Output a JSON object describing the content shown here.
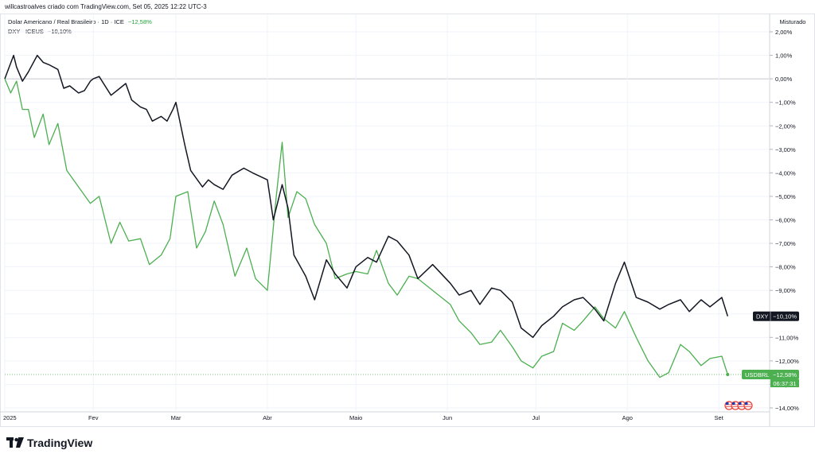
{
  "header": {
    "author_line": "willcastroalves criado com TradingView.com, Set 05, 2025 12:22 UTC-3"
  },
  "legend": {
    "main_symbol": "Dolar Americano / Real Brasileiro · 1D · ICE",
    "main_change": "−12,58%",
    "compare_symbol": "DXY · ICEUS",
    "compare_change": "−10,10%"
  },
  "price_scale": {
    "mode_label": "Misturado"
  },
  "badges": {
    "dxy": {
      "name": "DXY",
      "value": "−10,10%"
    },
    "usdbrl": {
      "name": "USDBRL",
      "value": "−12,58%",
      "countdown": "06:37:31"
    }
  },
  "brand": {
    "name": "TradingView"
  },
  "colors": {
    "dxy": "#131722",
    "usdbrl": "#4caf50",
    "usdbrl_badge": "#4caf50",
    "grid": "#f0f3fa",
    "zero_line": "#b2b5be"
  },
  "chart_data": {
    "type": "line",
    "title": "",
    "xlabel": "",
    "ylabel": "",
    "y_unit": "%",
    "ylim": [
      -14.0,
      2.0
    ],
    "y_ticks": [
      {
        "value": 2,
        "label": "2,00%"
      },
      {
        "value": 1,
        "label": "1,00%"
      },
      {
        "value": 0,
        "label": "0,00%"
      },
      {
        "value": -1,
        "label": "−1,00%"
      },
      {
        "value": -2,
        "label": "−2,00%"
      },
      {
        "value": -3,
        "label": "−3,00%"
      },
      {
        "value": -4,
        "label": "−4,00%"
      },
      {
        "value": -5,
        "label": "−5,00%"
      },
      {
        "value": -6,
        "label": "−6,00%"
      },
      {
        "value": -7,
        "label": "−7,00%"
      },
      {
        "value": -8,
        "label": "−8,00%"
      },
      {
        "value": -9,
        "label": "−9,00%"
      },
      {
        "value": -10,
        "label": "−10,00%"
      },
      {
        "value": -11,
        "label": "−11,00%"
      },
      {
        "value": -12,
        "label": "−12,00%"
      },
      {
        "value": -13,
        "label": "−13,00%"
      },
      {
        "value": -14,
        "label": "−14,00%"
      }
    ],
    "x_ticks": [
      {
        "date": "2025-01-02",
        "label": "2025"
      },
      {
        "date": "2025-02-01",
        "label": "Fev"
      },
      {
        "date": "2025-03-01",
        "label": "Mar"
      },
      {
        "date": "2025-04-01",
        "label": "Abr"
      },
      {
        "date": "2025-05-01",
        "label": "Maio"
      },
      {
        "date": "2025-06-01",
        "label": "Jun"
      },
      {
        "date": "2025-07-01",
        "label": "Jul"
      },
      {
        "date": "2025-08-01",
        "label": "Ago"
      },
      {
        "date": "2025-09-01",
        "label": "Set"
      }
    ],
    "grid": true,
    "series": [
      {
        "name": "DXY",
        "color": "#131722",
        "points": [
          [
            "2025-01-02",
            0
          ],
          [
            "2025-01-05",
            1.0
          ],
          [
            "2025-01-06",
            0.5
          ],
          [
            "2025-01-08",
            -0.1
          ],
          [
            "2025-01-10",
            0.3
          ],
          [
            "2025-01-13",
            1.0
          ],
          [
            "2025-01-15",
            0.7
          ],
          [
            "2025-01-17",
            0.6
          ],
          [
            "2025-01-20",
            0.4
          ],
          [
            "2025-01-22",
            -0.4
          ],
          [
            "2025-01-24",
            -0.3
          ],
          [
            "2025-01-27",
            -0.6
          ],
          [
            "2025-01-29",
            -0.5
          ],
          [
            "2025-01-31",
            -0.1
          ],
          [
            "2025-02-01",
            0
          ],
          [
            "2025-02-03",
            0.1
          ],
          [
            "2025-02-05",
            -0.3
          ],
          [
            "2025-02-07",
            -0.7
          ],
          [
            "2025-02-10",
            -0.4
          ],
          [
            "2025-02-12",
            -0.2
          ],
          [
            "2025-02-14",
            -0.9
          ],
          [
            "2025-02-17",
            -1.2
          ],
          [
            "2025-02-19",
            -1.3
          ],
          [
            "2025-02-21",
            -1.8
          ],
          [
            "2025-02-24",
            -1.6
          ],
          [
            "2025-02-26",
            -1.8
          ],
          [
            "2025-02-28",
            -1.3
          ],
          [
            "2025-03-01",
            -1.0
          ],
          [
            "2025-03-04",
            -2.8
          ],
          [
            "2025-03-06",
            -3.9
          ],
          [
            "2025-03-10",
            -4.6
          ],
          [
            "2025-03-12",
            -4.3
          ],
          [
            "2025-03-14",
            -4.5
          ],
          [
            "2025-03-17",
            -4.7
          ],
          [
            "2025-03-20",
            -4.1
          ],
          [
            "2025-03-24",
            -3.8
          ],
          [
            "2025-03-27",
            -4.0
          ],
          [
            "2025-04-01",
            -4.3
          ],
          [
            "2025-04-03",
            -6.0
          ],
          [
            "2025-04-06",
            -4.5
          ],
          [
            "2025-04-08",
            -5.5
          ],
          [
            "2025-04-10",
            -7.5
          ],
          [
            "2025-04-14",
            -8.4
          ],
          [
            "2025-04-17",
            -9.4
          ],
          [
            "2025-04-21",
            -7.7
          ],
          [
            "2025-04-24",
            -8.3
          ],
          [
            "2025-04-28",
            -8.9
          ],
          [
            "2025-05-01",
            -8.0
          ],
          [
            "2025-05-05",
            -7.6
          ],
          [
            "2025-05-08",
            -7.8
          ],
          [
            "2025-05-12",
            -6.7
          ],
          [
            "2025-05-15",
            -6.9
          ],
          [
            "2025-05-19",
            -7.5
          ],
          [
            "2025-05-22",
            -8.5
          ],
          [
            "2025-05-27",
            -7.9
          ],
          [
            "2025-06-02",
            -8.7
          ],
          [
            "2025-06-05",
            -9.2
          ],
          [
            "2025-06-09",
            -9.0
          ],
          [
            "2025-06-12",
            -9.6
          ],
          [
            "2025-06-16",
            -8.9
          ],
          [
            "2025-06-19",
            -9.0
          ],
          [
            "2025-06-23",
            -9.5
          ],
          [
            "2025-06-26",
            -10.6
          ],
          [
            "2025-06-30",
            -11.0
          ],
          [
            "2025-07-03",
            -10.5
          ],
          [
            "2025-07-07",
            -10.1
          ],
          [
            "2025-07-10",
            -9.7
          ],
          [
            "2025-07-14",
            -9.4
          ],
          [
            "2025-07-17",
            -9.3
          ],
          [
            "2025-07-21",
            -9.8
          ],
          [
            "2025-07-24",
            -10.3
          ],
          [
            "2025-07-28",
            -8.7
          ],
          [
            "2025-07-31",
            -7.8
          ],
          [
            "2025-08-04",
            -9.3
          ],
          [
            "2025-08-08",
            -9.5
          ],
          [
            "2025-08-12",
            -9.8
          ],
          [
            "2025-08-15",
            -9.6
          ],
          [
            "2025-08-19",
            -9.4
          ],
          [
            "2025-08-22",
            -9.9
          ],
          [
            "2025-08-26",
            -9.4
          ],
          [
            "2025-08-29",
            -9.7
          ],
          [
            "2025-09-02",
            -9.3
          ],
          [
            "2025-09-04",
            -10.1
          ]
        ]
      },
      {
        "name": "USDBRL",
        "color": "#4caf50",
        "points": [
          [
            "2025-01-02",
            0
          ],
          [
            "2025-01-04",
            -0.6
          ],
          [
            "2025-01-06",
            -0.1
          ],
          [
            "2025-01-08",
            -1.3
          ],
          [
            "2025-01-10",
            -1.3
          ],
          [
            "2025-01-12",
            -2.5
          ],
          [
            "2025-01-15",
            -1.5
          ],
          [
            "2025-01-17",
            -2.8
          ],
          [
            "2025-01-20",
            -1.9
          ],
          [
            "2025-01-23",
            -3.9
          ],
          [
            "2025-01-27",
            -4.6
          ],
          [
            "2025-01-31",
            -5.3
          ],
          [
            "2025-02-03",
            -5.0
          ],
          [
            "2025-02-07",
            -7.0
          ],
          [
            "2025-02-10",
            -6.1
          ],
          [
            "2025-02-13",
            -6.9
          ],
          [
            "2025-02-17",
            -6.8
          ],
          [
            "2025-02-20",
            -7.9
          ],
          [
            "2025-02-24",
            -7.5
          ],
          [
            "2025-02-27",
            -6.8
          ],
          [
            "2025-03-01",
            -5.0
          ],
          [
            "2025-03-05",
            -4.8
          ],
          [
            "2025-03-08",
            -7.2
          ],
          [
            "2025-03-11",
            -6.5
          ],
          [
            "2025-03-14",
            -5.2
          ],
          [
            "2025-03-17",
            -6.2
          ],
          [
            "2025-03-21",
            -8.4
          ],
          [
            "2025-03-25",
            -7.2
          ],
          [
            "2025-03-28",
            -8.5
          ],
          [
            "2025-04-01",
            -9.0
          ],
          [
            "2025-04-04",
            -5.0
          ],
          [
            "2025-04-06",
            -2.7
          ],
          [
            "2025-04-08",
            -5.9
          ],
          [
            "2025-04-11",
            -4.8
          ],
          [
            "2025-04-14",
            -5.1
          ],
          [
            "2025-04-17",
            -6.2
          ],
          [
            "2025-04-21",
            -7.0
          ],
          [
            "2025-04-24",
            -8.5
          ],
          [
            "2025-04-28",
            -8.3
          ],
          [
            "2025-05-01",
            -8.2
          ],
          [
            "2025-05-05",
            -8.3
          ],
          [
            "2025-05-08",
            -7.3
          ],
          [
            "2025-05-12",
            -8.7
          ],
          [
            "2025-05-15",
            -9.2
          ],
          [
            "2025-05-19",
            -8.4
          ],
          [
            "2025-05-22",
            -8.5
          ],
          [
            "2025-05-27",
            -9.0
          ],
          [
            "2025-06-02",
            -9.6
          ],
          [
            "2025-06-05",
            -10.3
          ],
          [
            "2025-06-09",
            -10.8
          ],
          [
            "2025-06-12",
            -11.3
          ],
          [
            "2025-06-16",
            -11.2
          ],
          [
            "2025-06-19",
            -10.7
          ],
          [
            "2025-06-23",
            -11.4
          ],
          [
            "2025-06-26",
            -12.0
          ],
          [
            "2025-06-30",
            -12.3
          ],
          [
            "2025-07-03",
            -11.8
          ],
          [
            "2025-07-07",
            -11.6
          ],
          [
            "2025-07-10",
            -10.4
          ],
          [
            "2025-07-14",
            -10.7
          ],
          [
            "2025-07-17",
            -10.3
          ],
          [
            "2025-07-21",
            -9.7
          ],
          [
            "2025-07-24",
            -10.2
          ],
          [
            "2025-07-28",
            -10.6
          ],
          [
            "2025-07-31",
            -9.9
          ],
          [
            "2025-08-04",
            -11.0
          ],
          [
            "2025-08-08",
            -12.0
          ],
          [
            "2025-08-12",
            -12.7
          ],
          [
            "2025-08-15",
            -12.5
          ],
          [
            "2025-08-19",
            -11.3
          ],
          [
            "2025-08-22",
            -11.6
          ],
          [
            "2025-08-26",
            -12.2
          ],
          [
            "2025-08-29",
            -11.9
          ],
          [
            "2025-09-02",
            -11.8
          ],
          [
            "2025-09-04",
            -12.58
          ]
        ]
      }
    ]
  }
}
